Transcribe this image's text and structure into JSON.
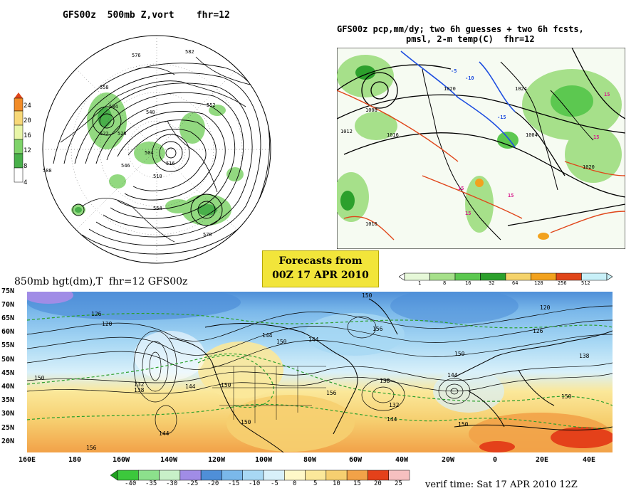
{
  "polar_panel": {
    "title": "GFS00z  500mb Z,vort    fhr=12",
    "scale_labels": [
      "24",
      "20",
      "16",
      "12",
      "8",
      "4"
    ],
    "scale_colors": [
      "#f28c28",
      "#f7d878",
      "#e8f5a8",
      "#7fd36a",
      "#49b04a",
      "#ffffff"
    ],
    "contour_labels": [
      "576",
      "582",
      "558",
      "534",
      "528",
      "552",
      "522",
      "540",
      "546",
      "504",
      "516",
      "510",
      "588",
      "570",
      "564"
    ]
  },
  "precip_panel": {
    "title_line1": "GFS00z pcp,mm/dy; two 6h guesses + two 6h fcsts,",
    "title_line2": "pmsl, 2-m temp(C)  fhr=12",
    "scale_labels": [
      "1",
      "8",
      "16",
      "32",
      "64",
      "128",
      "256",
      "512"
    ],
    "scale_colors": [
      "#e6f8d8",
      "#a6e08a",
      "#5cc850",
      "#2ca02c",
      "#f5d36b",
      "#f2a21e",
      "#e0461a",
      "#c8f0f8"
    ],
    "pressure_labels": [
      "1020",
      "1012",
      "1016",
      "1008",
      "1004",
      "1024"
    ],
    "temp_labels": [
      "15",
      "-5",
      "-10",
      "-15",
      "10"
    ]
  },
  "banner": {
    "line1": "Forecasts from",
    "line2": "00Z 17 APR 2010"
  },
  "map_panel": {
    "title": "850mb hgt(dm),T  fhr=12 GFS00z",
    "lat_labels": [
      "75N",
      "70N",
      "65N",
      "60N",
      "55N",
      "50N",
      "45N",
      "40N",
      "35N",
      "30N",
      "25N",
      "20N"
    ],
    "lon_labels": [
      "160E",
      "180",
      "160W",
      "140W",
      "120W",
      "100W",
      "80W",
      "60W",
      "40W",
      "20W",
      "0",
      "20E",
      "40E"
    ],
    "height_labels": [
      "150",
      "126",
      "120",
      "144",
      "132",
      "138",
      "156"
    ],
    "temp_scale_labels": [
      "-40",
      "-35",
      "-30",
      "-25",
      "-20",
      "-15",
      "-10",
      "-5",
      "0",
      "5",
      "10",
      "15",
      "20",
      "25"
    ],
    "temp_scale_colors": [
      "#3cc83c",
      "#8ce08c",
      "#c8f0c8",
      "#a08ce6",
      "#4f8fd8",
      "#7ab8ea",
      "#a8d8f4",
      "#d8f0fa",
      "#fff8c8",
      "#fbe89a",
      "#f6cf70",
      "#f2a248",
      "#e4411a",
      "#f6c0c0"
    ],
    "verif_time": "verif time: Sat 17 APR 2010 12Z"
  }
}
